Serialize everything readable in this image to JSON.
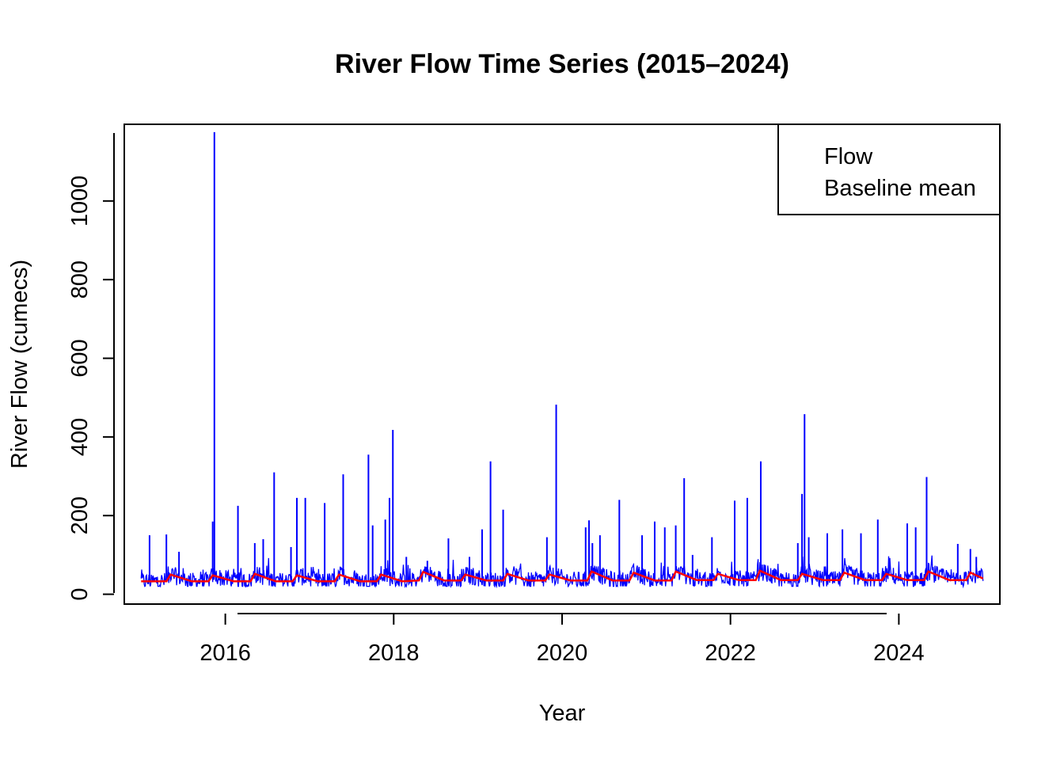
{
  "chart_data": {
    "type": "line",
    "title": "River Flow Time Series (2015–2024)",
    "xlabel": "Year",
    "ylabel": "River Flow (cumecs)",
    "xlim": [
      2014.8,
      2025.2
    ],
    "ylim": [
      -25,
      1195
    ],
    "x_ticks": [
      2016,
      2018,
      2020,
      2022,
      2024
    ],
    "x_tick_labels": [
      "2016",
      "2018",
      "2020",
      "2022",
      "2024"
    ],
    "y_ticks": [
      0,
      200,
      400,
      600,
      800,
      1000
    ],
    "y_tick_labels": [
      "0",
      "200",
      "400",
      "600",
      "800",
      "1000"
    ],
    "grid": false,
    "legend": {
      "placement": "top-right",
      "entries": [
        "Flow",
        "Baseline mean"
      ]
    },
    "colors": {
      "flow": "#0000ff",
      "baseline": "#ff0000"
    },
    "series": [
      {
        "name": "Flow",
        "typical_low": 20,
        "typical_high": 65,
        "peaks": [
          [
            2015.1,
            150
          ],
          [
            2015.3,
            152
          ],
          [
            2015.45,
            108
          ],
          [
            2015.85,
            185
          ],
          [
            2015.87,
            1175
          ],
          [
            2016.15,
            225
          ],
          [
            2016.35,
            130
          ],
          [
            2016.45,
            140
          ],
          [
            2016.58,
            310
          ],
          [
            2016.78,
            120
          ],
          [
            2016.85,
            245
          ],
          [
            2016.95,
            245
          ],
          [
            2017.18,
            232
          ],
          [
            2017.4,
            305
          ],
          [
            2017.7,
            355
          ],
          [
            2017.75,
            175
          ],
          [
            2017.9,
            190
          ],
          [
            2017.95,
            245
          ],
          [
            2017.99,
            418
          ],
          [
            2018.15,
            95
          ],
          [
            2018.4,
            85
          ],
          [
            2018.65,
            142
          ],
          [
            2018.9,
            95
          ],
          [
            2019.05,
            165
          ],
          [
            2019.15,
            338
          ],
          [
            2019.3,
            215
          ],
          [
            2019.82,
            145
          ],
          [
            2019.93,
            482
          ],
          [
            2020.28,
            170
          ],
          [
            2020.32,
            188
          ],
          [
            2020.36,
            130
          ],
          [
            2020.45,
            150
          ],
          [
            2020.68,
            240
          ],
          [
            2020.95,
            150
          ],
          [
            2021.1,
            185
          ],
          [
            2021.22,
            170
          ],
          [
            2021.35,
            175
          ],
          [
            2021.45,
            295
          ],
          [
            2021.55,
            100
          ],
          [
            2021.78,
            145
          ],
          [
            2022.05,
            238
          ],
          [
            2022.2,
            245
          ],
          [
            2022.36,
            338
          ],
          [
            2022.8,
            130
          ],
          [
            2022.85,
            255
          ],
          [
            2022.88,
            458
          ],
          [
            2022.93,
            145
          ],
          [
            2023.15,
            155
          ],
          [
            2023.33,
            165
          ],
          [
            2023.55,
            155
          ],
          [
            2023.75,
            190
          ],
          [
            2024.1,
            180
          ],
          [
            2024.2,
            170
          ],
          [
            2024.33,
            298
          ],
          [
            2024.7,
            128
          ],
          [
            2024.85,
            115
          ],
          [
            2024.92,
            95
          ]
        ]
      },
      {
        "name": "Baseline mean",
        "points": [
          [
            2015.0,
            33
          ],
          [
            2015.3,
            33
          ],
          [
            2015.35,
            50
          ],
          [
            2015.6,
            33
          ],
          [
            2015.8,
            33
          ],
          [
            2015.85,
            48
          ],
          [
            2016.1,
            33
          ],
          [
            2016.3,
            33
          ],
          [
            2016.35,
            52
          ],
          [
            2016.6,
            33
          ],
          [
            2016.8,
            33
          ],
          [
            2016.85,
            48
          ],
          [
            2017.1,
            33
          ],
          [
            2017.3,
            33
          ],
          [
            2017.35,
            50
          ],
          [
            2017.6,
            33
          ],
          [
            2017.8,
            33
          ],
          [
            2017.85,
            50
          ],
          [
            2018.1,
            33
          ],
          [
            2018.3,
            35
          ],
          [
            2018.35,
            57
          ],
          [
            2018.6,
            35
          ],
          [
            2018.8,
            35
          ],
          [
            2018.85,
            50
          ],
          [
            2019.1,
            35
          ],
          [
            2019.3,
            35
          ],
          [
            2019.35,
            52
          ],
          [
            2019.6,
            35
          ],
          [
            2019.8,
            35
          ],
          [
            2019.85,
            50
          ],
          [
            2020.1,
            35
          ],
          [
            2020.3,
            35
          ],
          [
            2020.35,
            58
          ],
          [
            2020.6,
            35
          ],
          [
            2020.8,
            35
          ],
          [
            2020.85,
            55
          ],
          [
            2021.1,
            35
          ],
          [
            2021.3,
            35
          ],
          [
            2021.35,
            58
          ],
          [
            2021.6,
            36
          ],
          [
            2021.8,
            36
          ],
          [
            2021.85,
            52
          ],
          [
            2022.1,
            36
          ],
          [
            2022.3,
            36
          ],
          [
            2022.35,
            60
          ],
          [
            2022.6,
            36
          ],
          [
            2022.8,
            36
          ],
          [
            2022.85,
            52
          ],
          [
            2023.1,
            36
          ],
          [
            2023.3,
            36
          ],
          [
            2023.35,
            55
          ],
          [
            2023.6,
            36
          ],
          [
            2023.8,
            36
          ],
          [
            2023.85,
            52
          ],
          [
            2024.1,
            36
          ],
          [
            2024.3,
            36
          ],
          [
            2024.35,
            58
          ],
          [
            2024.6,
            36
          ],
          [
            2024.8,
            36
          ],
          [
            2024.85,
            55
          ],
          [
            2025.0,
            40
          ]
        ]
      }
    ]
  }
}
